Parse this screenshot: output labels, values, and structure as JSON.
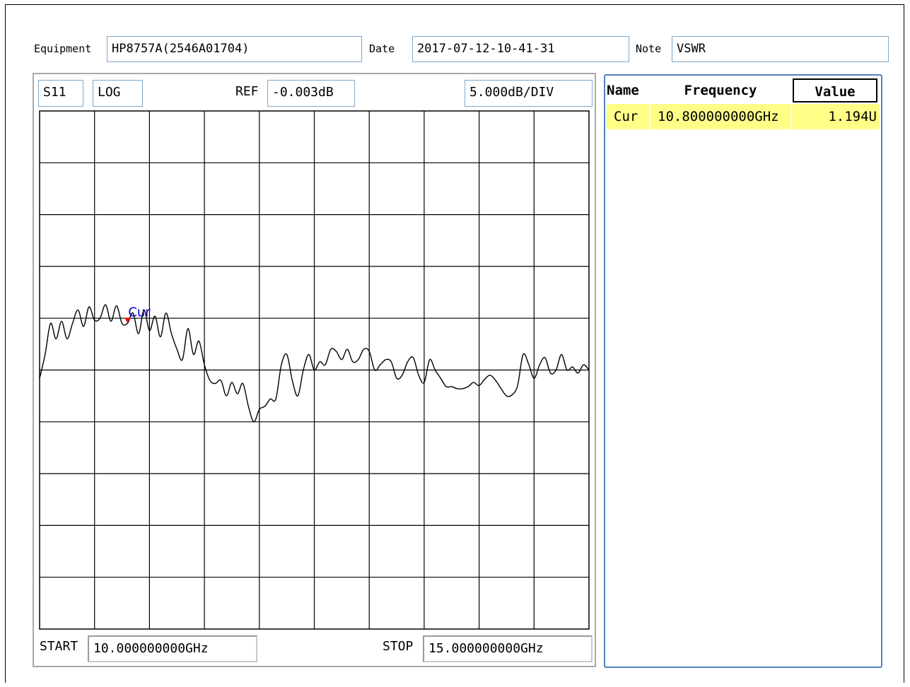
{
  "header": {
    "equipment_label": "Equipment",
    "equipment_value": "HP8757A(2546A01704)",
    "date_label": "Date",
    "date_value": "2017-07-12-10-41-31",
    "note_label": "Note",
    "note_value": "VSWR"
  },
  "plot": {
    "param": "S11",
    "format": "LOG",
    "ref_label": "REF",
    "ref_value": "-0.003dB",
    "scale": "5.000dB/DIV",
    "start_label": "START",
    "start_value": "10.000000000GHz",
    "stop_label": "STOP",
    "stop_value": "15.000000000GHz",
    "marker_label": "Cur",
    "trace_color": "#000000",
    "marker_color": "#ff0000",
    "marker_text_color": "#0000cc"
  },
  "chart_data": {
    "type": "line",
    "x_unit": "GHz",
    "y_unit": "dB",
    "xlim": [
      10.0,
      15.0
    ],
    "ylim": [
      -25.0,
      25.0
    ],
    "x_divisions": 10,
    "y_divisions": 10,
    "grid": true,
    "marker": {
      "name": "Cur",
      "x": 10.8
    },
    "x": [
      10.0,
      10.05,
      10.1,
      10.15,
      10.2,
      10.25,
      10.3,
      10.35,
      10.4,
      10.45,
      10.5,
      10.55,
      10.6,
      10.65,
      10.7,
      10.75,
      10.8,
      10.85,
      10.9,
      10.95,
      11.0,
      11.05,
      11.1,
      11.15,
      11.2,
      11.25,
      11.3,
      11.35,
      11.4,
      11.45,
      11.5,
      11.55,
      11.6,
      11.65,
      11.7,
      11.75,
      11.8,
      11.85,
      11.9,
      11.95,
      12.0,
      12.05,
      12.1,
      12.15,
      12.2,
      12.25,
      12.3,
      12.35,
      12.4,
      12.45,
      12.5,
      12.55,
      12.6,
      12.65,
      12.7,
      12.75,
      12.8,
      12.85,
      12.9,
      12.95,
      13.0,
      13.05,
      13.1,
      13.15,
      13.2,
      13.25,
      13.3,
      13.35,
      13.4,
      13.45,
      13.5,
      13.55,
      13.6,
      13.65,
      13.7,
      13.75,
      13.8,
      13.85,
      13.9,
      13.95,
      14.0,
      14.05,
      14.1,
      14.15,
      14.2,
      14.25,
      14.3,
      14.35,
      14.4,
      14.45,
      14.5,
      14.55,
      14.6,
      14.65,
      14.7,
      14.75,
      14.8,
      14.85,
      14.9,
      14.95,
      15.0
    ],
    "y": [
      -0.8,
      1.5,
      4.5,
      3.0,
      4.7,
      3.0,
      4.5,
      5.8,
      4.2,
      6.1,
      4.8,
      5.0,
      6.3,
      4.7,
      6.2,
      4.5,
      4.5,
      5.5,
      3.5,
      5.8,
      3.8,
      5.2,
      3.2,
      5.5,
      3.5,
      2.0,
      1.0,
      4.0,
      1.5,
      2.8,
      0.5,
      -1.0,
      -1.3,
      -1.0,
      -2.5,
      -1.2,
      -2.3,
      -1.3,
      -3.5,
      -5.0,
      -3.8,
      -3.5,
      -2.8,
      -2.8,
      0.5,
      1.5,
      -1.0,
      -2.5,
      0.0,
      1.5,
      0.0,
      0.8,
      0.5,
      2.0,
      1.8,
      1.0,
      2.0,
      0.8,
      1.0,
      2.0,
      1.8,
      0.0,
      0.5,
      1.0,
      0.8,
      -0.8,
      -0.5,
      0.8,
      1.2,
      -0.5,
      -1.2,
      1.0,
      0.0,
      -0.8,
      -1.6,
      -1.6,
      -1.8,
      -1.8,
      -1.6,
      -1.2,
      -1.5,
      -0.9,
      -0.5,
      -1.0,
      -1.8,
      -2.5,
      -2.4,
      -1.5,
      1.5,
      0.6,
      -0.8,
      0.5,
      1.2,
      -0.3,
      0.0,
      1.5,
      0.0,
      0.3,
      -0.3,
      0.5,
      0.0
    ]
  },
  "marker_table": {
    "headers": {
      "name": "Name",
      "frequency": "Frequency",
      "value": "Value"
    },
    "rows": [
      {
        "name": "Cur",
        "frequency": "10.800000000GHz",
        "value": "1.194U"
      }
    ],
    "row_color": "#ffff88",
    "border_color": "#4f81bd"
  }
}
